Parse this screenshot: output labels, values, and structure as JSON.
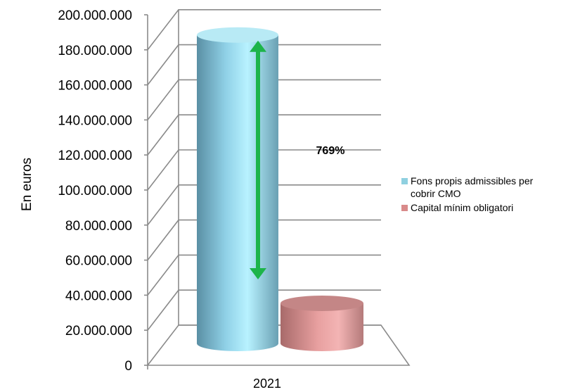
{
  "chart_data": {
    "type": "bar",
    "ylabel": "En euros",
    "categories": [
      "2021"
    ],
    "ylim": [
      0,
      200000000
    ],
    "ytick_step": 20000000,
    "yticks": [
      "0",
      "20.000.000",
      "40.000.000",
      "60.000.000",
      "80.000.000",
      "100.000.000",
      "120.000.000",
      "140.000.000",
      "160.000.000",
      "180.000.000",
      "200.000.000"
    ],
    "series": [
      {
        "name": "Fons propis admissibles per cobrir CMO",
        "values": [
          176000000
        ],
        "color": "#8fd0e0"
      },
      {
        "name": "Capital mínim obligatori",
        "values": [
          22900000
        ],
        "color": "#e8a0a0"
      }
    ],
    "annotation": {
      "text": "769%",
      "from": 22900000,
      "to": 176000000,
      "color": "#1db44a"
    },
    "grid": true,
    "legend_position": "right"
  }
}
